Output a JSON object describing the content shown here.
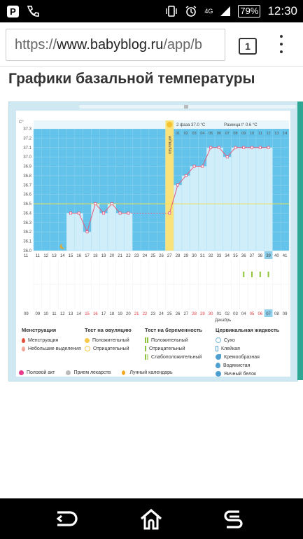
{
  "status_bar": {
    "left_icons": [
      "p-notification-icon",
      "wifi-call-icon"
    ],
    "network_label": "4G",
    "battery": "79%",
    "time": "12:30"
  },
  "browser": {
    "url_prefix": "https://",
    "url_domain": "www.babyblog.ru",
    "url_rest": "/app/b",
    "tab_count": "1"
  },
  "page": {
    "title": "Графики базальной температуры"
  },
  "chart_data": {
    "type": "line",
    "y_unit": "С°",
    "ylim": [
      36.0,
      37.3
    ],
    "y_ticks": [
      "37.3",
      "37.2",
      "37.1",
      "37.0",
      "36.9",
      "36.8",
      "36.7",
      "36.6",
      "36.5",
      "36.4",
      "36.3",
      "36.2",
      "36.1",
      "36.0"
    ],
    "cycle_days": [
      11,
      12,
      13,
      14,
      15,
      16,
      17,
      18,
      19,
      20,
      21,
      22,
      23,
      24,
      25,
      26,
      27,
      28,
      29,
      30,
      31,
      32,
      33,
      34,
      35,
      36,
      37,
      38,
      39,
      40,
      41
    ],
    "dates": [
      "09",
      "10",
      "11",
      "12",
      "13",
      "14",
      "15",
      "16",
      "17",
      "18",
      "19",
      "20",
      "21",
      "22",
      "23",
      "24",
      "25",
      "26",
      "27",
      "28",
      "29",
      "30",
      "01",
      "02",
      "03",
      "04",
      "05",
      "06",
      "07",
      "08",
      "09"
    ],
    "dates_red": [
      "15",
      "16",
      "21",
      "22",
      "28",
      "29",
      "30",
      "05",
      "06"
    ],
    "month_label": "Декабрь",
    "ovulation_label": "овуляция",
    "phase_day_numbers": [
      "01",
      "02",
      "03",
      "04",
      "05",
      "06",
      "07",
      "08",
      "09",
      "10",
      "11",
      "12",
      "13",
      "14"
    ],
    "phase_info": "2 фаза 37.0 °С",
    "diff_info": "Разница t° 0.6 °С",
    "series": [
      {
        "values": [
          null,
          null,
          null,
          null,
          36.4,
          36.4,
          36.2,
          36.5,
          36.4,
          36.5,
          36.4,
          36.4,
          null,
          null,
          null,
          null,
          36.4,
          36.7,
          36.8,
          36.9,
          36.9,
          37.1,
          37.1,
          37.0,
          37.1,
          37.1,
          37.1,
          37.1,
          37.1,
          null,
          null
        ]
      }
    ],
    "coverline": 36.5,
    "highlight_day": 39,
    "pregnancy_test_days": [
      36,
      37,
      38,
      39
    ],
    "moon_day": 14
  },
  "legend": {
    "menstruation": {
      "title": "Менструация",
      "items": [
        "Менструация",
        "Небольшие выделения"
      ]
    },
    "ovulation_test": {
      "title": "Тест на овуляцию",
      "items": [
        "Положительный",
        "Отрицательный"
      ]
    },
    "pregnancy_test": {
      "title": "Тест на беременность",
      "items": [
        "Положительный",
        "Отрицательный",
        "Слабоположительный"
      ]
    },
    "cervical": {
      "title": "Цервикальная жидкость",
      "items": [
        "Сухо",
        "Клейкая",
        "Кремообразная",
        "Водянистая",
        "Яичный белок"
      ]
    },
    "bottom": [
      "Половой акт",
      "Прием лекарств",
      "Лунный календарь"
    ]
  },
  "colors": {
    "chart_blue": "#64c3ea",
    "bar_fill": "#cfeefa",
    "line": "#e35a7c",
    "ovulation": "#f9e27a",
    "coverline": "#f0e04a"
  }
}
